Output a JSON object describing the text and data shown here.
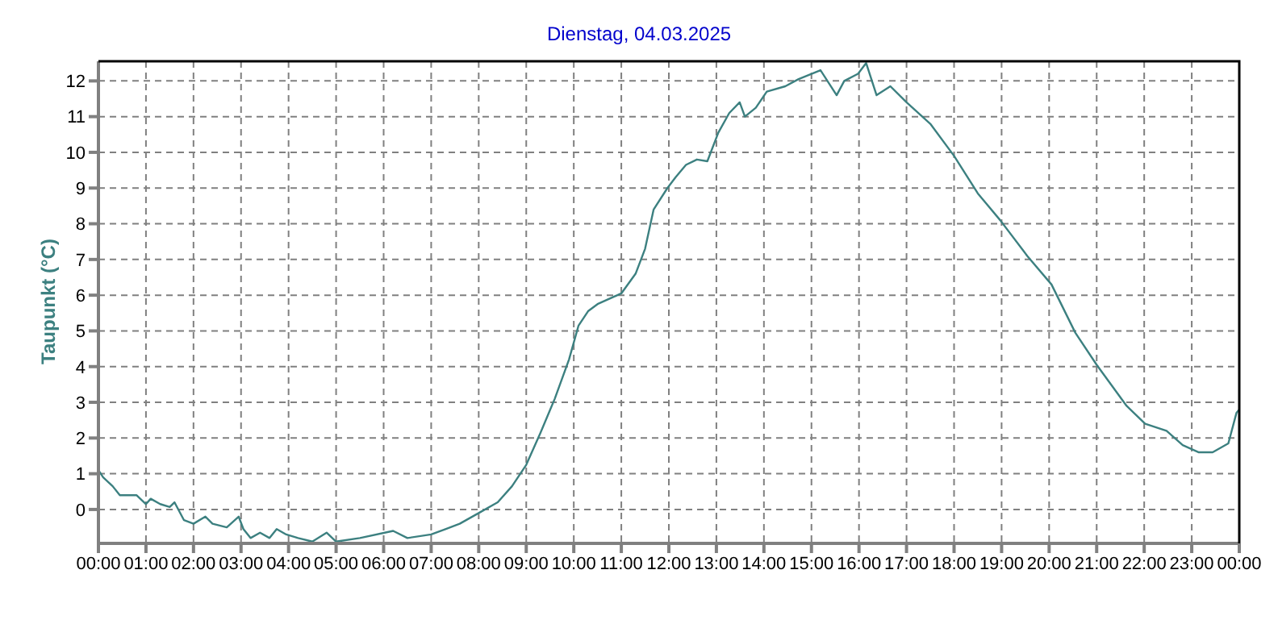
{
  "chart_data": {
    "type": "line",
    "title": "Dienstag, 04.03.2025",
    "ylabel": "Taupunkt  (°C)",
    "x": [
      0,
      0.1,
      0.3,
      0.45,
      0.8,
      1.0,
      1.1,
      1.3,
      1.5,
      1.6,
      1.8,
      2.0,
      2.25,
      2.4,
      2.7,
      2.95,
      3.05,
      3.2,
      3.4,
      3.6,
      3.75,
      3.95,
      4.2,
      4.5,
      4.8,
      5.0,
      5.5,
      6.2,
      6.5,
      7.0,
      7.3,
      7.6,
      8.0,
      8.4,
      8.7,
      9.0,
      9.3,
      9.6,
      9.9,
      10.1,
      10.3,
      10.5,
      11.0,
      11.3,
      11.5,
      11.68,
      11.97,
      12.14,
      12.36,
      12.59,
      12.81,
      13.04,
      13.27,
      13.49,
      13.6,
      13.83,
      14.06,
      14.45,
      14.73,
      15.19,
      15.53,
      15.69,
      15.98,
      16.15,
      16.37,
      16.66,
      17.0,
      17.5,
      18.0,
      18.5,
      18.97,
      19.54,
      20.05,
      20.55,
      21.0,
      21.63,
      22.02,
      22.47,
      22.81,
      23.15,
      23.44,
      23.77,
      23.94,
      24
    ],
    "series": [
      {
        "color": "#3c8080",
        "values": [
          1.1,
          0.9,
          0.65,
          0.4,
          0.4,
          0.15,
          0.3,
          0.15,
          0.07,
          0.2,
          -0.3,
          -0.4,
          -0.2,
          -0.4,
          -0.5,
          -0.2,
          -0.55,
          -0.8,
          -0.65,
          -0.8,
          -0.55,
          -0.7,
          -0.8,
          -0.9,
          -0.65,
          -0.9,
          -0.8,
          -0.6,
          -0.8,
          -0.7,
          -0.55,
          -0.4,
          -0.1,
          0.2,
          0.65,
          1.25,
          2.15,
          3.1,
          4.2,
          5.15,
          5.55,
          5.75,
          6.05,
          6.6,
          7.3,
          8.4,
          9.0,
          9.3,
          9.65,
          9.8,
          9.75,
          10.55,
          11.1,
          11.4,
          11.0,
          11.25,
          11.7,
          11.85,
          12.05,
          12.3,
          11.6,
          12.0,
          12.2,
          12.5,
          11.6,
          11.85,
          11.4,
          10.8,
          9.9,
          8.85,
          8.1,
          7.1,
          6.3,
          4.95,
          4.05,
          2.9,
          2.4,
          2.2,
          1.8,
          1.6,
          1.6,
          1.85,
          2.7,
          2.8
        ]
      }
    ],
    "xlim": [
      0,
      24
    ],
    "xticks": [
      {
        "value": 0,
        "label": "00:00"
      },
      {
        "value": 1,
        "label": "01:00"
      },
      {
        "value": 2,
        "label": "02:00"
      },
      {
        "value": 3,
        "label": "03:00"
      },
      {
        "value": 4,
        "label": "04:00"
      },
      {
        "value": 5,
        "label": "05:00"
      },
      {
        "value": 6,
        "label": "06:00"
      },
      {
        "value": 7,
        "label": "07:00"
      },
      {
        "value": 8,
        "label": "08:00"
      },
      {
        "value": 9,
        "label": "09:00"
      },
      {
        "value": 10,
        "label": "10:00"
      },
      {
        "value": 11,
        "label": "11:00"
      },
      {
        "value": 12,
        "label": "12:00"
      },
      {
        "value": 13,
        "label": "13:00"
      },
      {
        "value": 14,
        "label": "14:00"
      },
      {
        "value": 15,
        "label": "15:00"
      },
      {
        "value": 16,
        "label": "16:00"
      },
      {
        "value": 17,
        "label": "17:00"
      },
      {
        "value": 18,
        "label": "18:00"
      },
      {
        "value": 19,
        "label": "19:00"
      },
      {
        "value": 20,
        "label": "20:00"
      },
      {
        "value": 21,
        "label": "21:00"
      },
      {
        "value": 22,
        "label": "22:00"
      },
      {
        "value": 23,
        "label": "23:00"
      },
      {
        "value": 24,
        "label": "00:00"
      }
    ],
    "ylim": [
      -0.95,
      12.55
    ],
    "yticks": [
      0,
      1,
      2,
      3,
      4,
      5,
      6,
      7,
      8,
      9,
      10,
      11,
      12
    ],
    "grid": true,
    "legend": false,
    "marker": "none",
    "line_style": "solid"
  }
}
